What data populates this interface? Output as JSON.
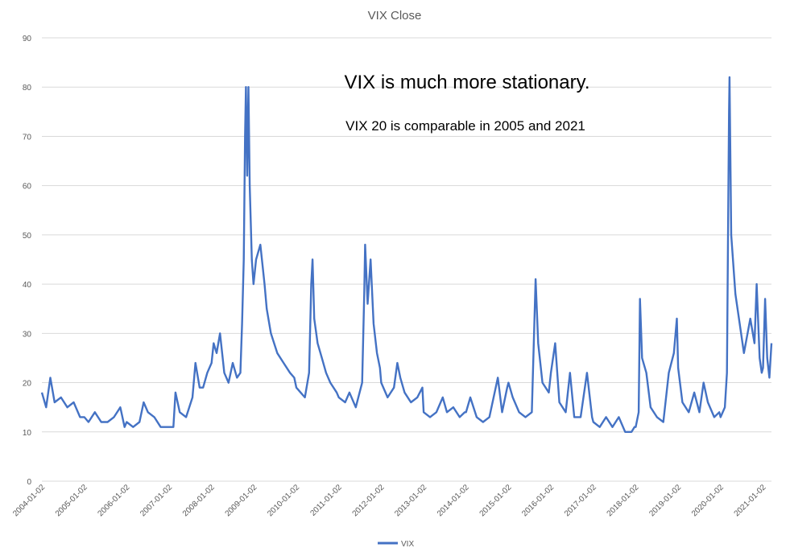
{
  "chart_data": {
    "type": "line",
    "title": "VIX Close",
    "xlabel": "",
    "ylabel": "",
    "ylim": [
      0,
      90
    ],
    "y_ticks": [
      0,
      10,
      20,
      30,
      40,
      50,
      60,
      70,
      80,
      90
    ],
    "x_tick_labels": [
      "2004-01-02",
      "2005-01-02",
      "2006-01-02",
      "2007-01-02",
      "2008-01-02",
      "2009-01-02",
      "2010-01-02",
      "2011-01-02",
      "2012-01-02",
      "2013-01-02",
      "2014-01-02",
      "2015-01-02",
      "2016-01-02",
      "2017-01-02",
      "2018-01-02",
      "2019-01-02",
      "2020-01-02",
      "2021-01-02"
    ],
    "grid": "horizontal",
    "legend": "bottom",
    "annotations": [
      "VIX is much more stationary.",
      "VIX 20 is comparable in 2005 and 2021"
    ],
    "series": [
      {
        "name": "VIX",
        "color": "#4472C4",
        "points": [
          [
            2004.0,
            18
          ],
          [
            2004.1,
            15
          ],
          [
            2004.2,
            21
          ],
          [
            2004.3,
            16
          ],
          [
            2004.45,
            17
          ],
          [
            2004.6,
            15
          ],
          [
            2004.75,
            16
          ],
          [
            2004.9,
            13
          ],
          [
            2005.0,
            13
          ],
          [
            2005.1,
            12
          ],
          [
            2005.25,
            14
          ],
          [
            2005.4,
            12
          ],
          [
            2005.55,
            12
          ],
          [
            2005.7,
            13
          ],
          [
            2005.85,
            15
          ],
          [
            2005.95,
            11
          ],
          [
            2006.0,
            12
          ],
          [
            2006.15,
            11
          ],
          [
            2006.3,
            12
          ],
          [
            2006.4,
            16
          ],
          [
            2006.5,
            14
          ],
          [
            2006.65,
            13
          ],
          [
            2006.8,
            11
          ],
          [
            2006.95,
            11
          ],
          [
            2007.0,
            11
          ],
          [
            2007.1,
            11
          ],
          [
            2007.15,
            18
          ],
          [
            2007.25,
            14
          ],
          [
            2007.4,
            13
          ],
          [
            2007.55,
            17
          ],
          [
            2007.62,
            24
          ],
          [
            2007.72,
            19
          ],
          [
            2007.8,
            19
          ],
          [
            2007.9,
            22
          ],
          [
            2008.0,
            24
          ],
          [
            2008.05,
            28
          ],
          [
            2008.12,
            26
          ],
          [
            2008.2,
            30
          ],
          [
            2008.3,
            22
          ],
          [
            2008.4,
            20
          ],
          [
            2008.5,
            24
          ],
          [
            2008.6,
            21
          ],
          [
            2008.68,
            22
          ],
          [
            2008.72,
            32
          ],
          [
            2008.76,
            45
          ],
          [
            2008.79,
            70
          ],
          [
            2008.81,
            80
          ],
          [
            2008.84,
            62
          ],
          [
            2008.87,
            80
          ],
          [
            2008.9,
            60
          ],
          [
            2008.95,
            45
          ],
          [
            2008.99,
            40
          ],
          [
            2009.05,
            45
          ],
          [
            2009.15,
            48
          ],
          [
            2009.2,
            44
          ],
          [
            2009.25,
            40
          ],
          [
            2009.3,
            35
          ],
          [
            2009.4,
            30
          ],
          [
            2009.55,
            26
          ],
          [
            2009.7,
            24
          ],
          [
            2009.85,
            22
          ],
          [
            2009.95,
            21
          ],
          [
            2010.0,
            19
          ],
          [
            2010.1,
            18
          ],
          [
            2010.2,
            17
          ],
          [
            2010.3,
            22
          ],
          [
            2010.35,
            40
          ],
          [
            2010.38,
            45
          ],
          [
            2010.42,
            33
          ],
          [
            2010.5,
            28
          ],
          [
            2010.6,
            25
          ],
          [
            2010.7,
            22
          ],
          [
            2010.8,
            20
          ],
          [
            2010.95,
            18
          ],
          [
            2011.0,
            17
          ],
          [
            2011.15,
            16
          ],
          [
            2011.25,
            18
          ],
          [
            2011.4,
            15
          ],
          [
            2011.55,
            20
          ],
          [
            2011.6,
            38
          ],
          [
            2011.62,
            48
          ],
          [
            2011.68,
            36
          ],
          [
            2011.75,
            45
          ],
          [
            2011.82,
            32
          ],
          [
            2011.9,
            26
          ],
          [
            2011.97,
            23
          ],
          [
            2012.0,
            20
          ],
          [
            2012.15,
            17
          ],
          [
            2012.3,
            19
          ],
          [
            2012.38,
            24
          ],
          [
            2012.45,
            21
          ],
          [
            2012.55,
            18
          ],
          [
            2012.7,
            16
          ],
          [
            2012.85,
            17
          ],
          [
            2012.97,
            19
          ],
          [
            2013.0,
            14
          ],
          [
            2013.15,
            13
          ],
          [
            2013.3,
            14
          ],
          [
            2013.45,
            17
          ],
          [
            2013.55,
            14
          ],
          [
            2013.7,
            15
          ],
          [
            2013.85,
            13
          ],
          [
            2013.97,
            14
          ],
          [
            2014.0,
            14
          ],
          [
            2014.1,
            17
          ],
          [
            2014.25,
            13
          ],
          [
            2014.4,
            12
          ],
          [
            2014.55,
            13
          ],
          [
            2014.75,
            21
          ],
          [
            2014.85,
            14
          ],
          [
            2014.97,
            19
          ],
          [
            2015.0,
            20
          ],
          [
            2015.1,
            17
          ],
          [
            2015.25,
            14
          ],
          [
            2015.4,
            13
          ],
          [
            2015.55,
            14
          ],
          [
            2015.64,
            41
          ],
          [
            2015.7,
            28
          ],
          [
            2015.8,
            20
          ],
          [
            2015.95,
            18
          ],
          [
            2016.0,
            22
          ],
          [
            2016.1,
            28
          ],
          [
            2016.2,
            16
          ],
          [
            2016.35,
            14
          ],
          [
            2016.45,
            22
          ],
          [
            2016.55,
            13
          ],
          [
            2016.7,
            13
          ],
          [
            2016.85,
            22
          ],
          [
            2016.97,
            13
          ],
          [
            2017.0,
            12
          ],
          [
            2017.15,
            11
          ],
          [
            2017.3,
            13
          ],
          [
            2017.45,
            11
          ],
          [
            2017.6,
            13
          ],
          [
            2017.75,
            10
          ],
          [
            2017.9,
            10
          ],
          [
            2017.97,
            11
          ],
          [
            2018.0,
            11
          ],
          [
            2018.07,
            14
          ],
          [
            2018.1,
            37
          ],
          [
            2018.15,
            25
          ],
          [
            2018.25,
            22
          ],
          [
            2018.35,
            15
          ],
          [
            2018.5,
            13
          ],
          [
            2018.65,
            12
          ],
          [
            2018.78,
            22
          ],
          [
            2018.9,
            26
          ],
          [
            2018.97,
            33
          ],
          [
            2019.0,
            23
          ],
          [
            2019.1,
            16
          ],
          [
            2019.25,
            14
          ],
          [
            2019.38,
            18
          ],
          [
            2019.5,
            14
          ],
          [
            2019.6,
            20
          ],
          [
            2019.7,
            16
          ],
          [
            2019.85,
            13
          ],
          [
            2019.97,
            14
          ],
          [
            2020.0,
            13
          ],
          [
            2020.1,
            15
          ],
          [
            2020.15,
            22
          ],
          [
            2020.18,
            55
          ],
          [
            2020.2,
            75
          ],
          [
            2020.21,
            82
          ],
          [
            2020.25,
            50
          ],
          [
            2020.35,
            38
          ],
          [
            2020.45,
            32
          ],
          [
            2020.55,
            26
          ],
          [
            2020.7,
            33
          ],
          [
            2020.8,
            28
          ],
          [
            2020.85,
            40
          ],
          [
            2020.92,
            25
          ],
          [
            2020.97,
            22
          ],
          [
            2021.0,
            23
          ],
          [
            2021.05,
            37
          ],
          [
            2021.1,
            25
          ],
          [
            2021.15,
            21
          ],
          [
            2021.2,
            28
          ]
        ]
      }
    ]
  }
}
